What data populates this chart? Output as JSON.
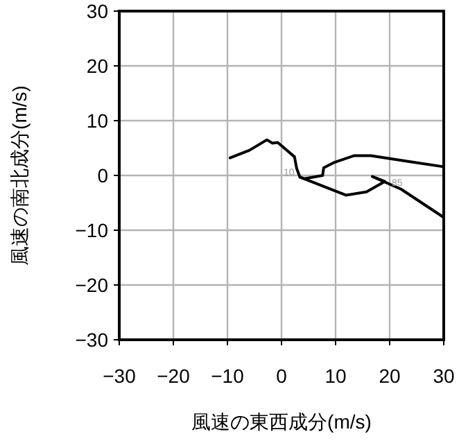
{
  "chart_data": {
    "type": "line",
    "xlabel": "風速の東西成分(m/s)",
    "ylabel": "風速の南北成分(m/s)",
    "xlim": [
      -30,
      30
    ],
    "ylim": [
      -30,
      30
    ],
    "xticks": [
      {
        "value": -30,
        "label": "−30"
      },
      {
        "value": -20,
        "label": "−20"
      },
      {
        "value": -10,
        "label": "−10"
      },
      0,
      10,
      20,
      30
    ],
    "yticks": [
      {
        "value": -30,
        "label": "−30"
      },
      {
        "value": -20,
        "label": "−20"
      },
      {
        "value": -10,
        "label": "−10"
      },
      0,
      10,
      20,
      30
    ],
    "grid": true,
    "marker": "none",
    "line_style": "solid",
    "series": [
      {
        "color": "#000000",
        "x": [
          -9.5,
          -5.9,
          -2.7,
          -1.7,
          -0.7,
          2.4,
          2.8,
          3.4,
          11.9,
          15.7,
          19.1,
          16.8,
          22.1,
          29.9
        ],
        "values": [
          3.2,
          4.6,
          6.5,
          5.9,
          6.0,
          3.4,
          1.3,
          -0.3,
          -3.6,
          -3.0,
          -1.1,
          -0.2,
          -2.5,
          -7.6
        ]
      },
      {
        "color": "#000000",
        "x": [
          3.4,
          4.2,
          7.6,
          7.8,
          9.8,
          13.4,
          16.5,
          23.8,
          29.9
        ],
        "values": [
          -0.3,
          -0.6,
          0,
          1.4,
          2.4,
          3.6,
          3.6,
          2.5,
          1.6
        ]
      }
    ],
    "annotations": [
      {
        "text": "10",
        "x": 3.4,
        "y": -0.3
      },
      {
        "text": "85",
        "x": 19.1,
        "y": -1.1
      }
    ]
  }
}
